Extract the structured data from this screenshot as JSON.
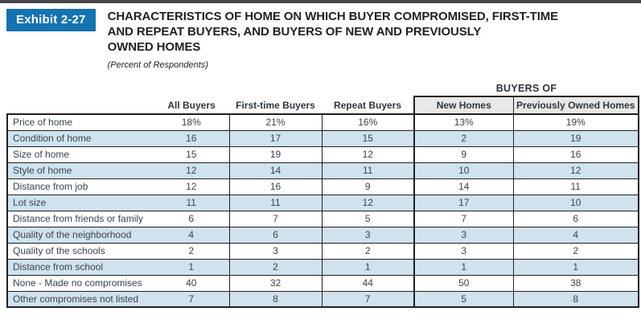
{
  "exhibit": {
    "label": "Exhibit 2-27"
  },
  "title": {
    "lines": [
      "CHARACTERISTICS OF HOME ON WHICH BUYER COMPROMISED, FIRST-TIME",
      "AND REPEAT BUYERS, AND BUYERS OF NEW AND PREVIOUSLY",
      "OWNED HOMES"
    ],
    "subtitle": "(Percent of Respondents)"
  },
  "table": {
    "group_header": "BUYERS OF",
    "columns": [
      "All Buyers",
      "First-time Buyers",
      "Repeat Buyers",
      "New Homes",
      "Previously Owned Homes"
    ],
    "rows": [
      {
        "label": "Price of home",
        "values": [
          "18%",
          "21%",
          "16%",
          "13%",
          "19%"
        ]
      },
      {
        "label": "Condition of home",
        "values": [
          "16",
          "17",
          "15",
          "2",
          "19"
        ]
      },
      {
        "label": "Size of home",
        "values": [
          "15",
          "19",
          "12",
          "9",
          "16"
        ]
      },
      {
        "label": "Style of home",
        "values": [
          "12",
          "14",
          "11",
          "10",
          "12"
        ]
      },
      {
        "label": "Distance from job",
        "values": [
          "12",
          "16",
          "9",
          "14",
          "11"
        ]
      },
      {
        "label": "Lot size",
        "values": [
          "11",
          "11",
          "12",
          "17",
          "10"
        ]
      },
      {
        "label": "Distance from friends or family",
        "values": [
          "6",
          "7",
          "5",
          "7",
          "6"
        ]
      },
      {
        "label": "Quality of the neighborhood",
        "values": [
          "4",
          "6",
          "3",
          "3",
          "4"
        ]
      },
      {
        "label": "Quality of the schools",
        "values": [
          "2",
          "3",
          "2",
          "3",
          "2"
        ]
      },
      {
        "label": "Distance from school",
        "values": [
          "1",
          "2",
          "1",
          "1",
          "1"
        ]
      },
      {
        "label": "None - Made no compromises",
        "values": [
          "40",
          "32",
          "44",
          "50",
          "38"
        ]
      },
      {
        "label": "Other compromises not listed",
        "values": [
          "7",
          "8",
          "7",
          "5",
          "8"
        ]
      }
    ]
  },
  "colors": {
    "accent_blue": "#1573b0",
    "stripe_blue": "#cfe2ee",
    "header_gray": "#e8e8e8",
    "border_black": "#231f20"
  }
}
